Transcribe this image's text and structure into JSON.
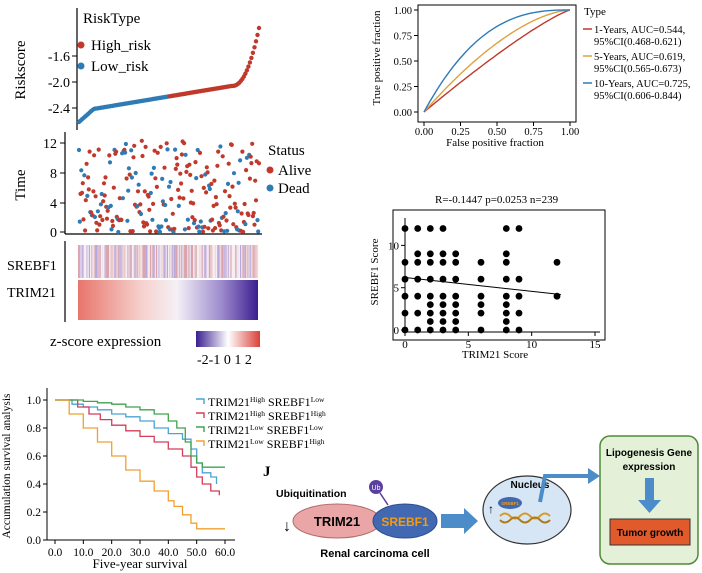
{
  "colors": {
    "high": "#C0392B",
    "low": "#2E7BB5",
    "heat_low": "#3B1E8F",
    "heat_high": "#D9413A",
    "roc1": "#C0392B",
    "roc5": "#E0A040",
    "roc10": "#2E7BB5",
    "km1": "#4AA3D4",
    "km2": "#D43C5C",
    "km3": "#3FA34D",
    "km4": "#F0A030"
  },
  "riskscore": {
    "legend_title": "RiskType",
    "legend_items": [
      "High_risk",
      "Low_risk"
    ],
    "ylabel": "Riskscore",
    "yticks": [
      "-1.6",
      "-2.0",
      "-2.4"
    ]
  },
  "time_panel": {
    "ylabel": "Time",
    "yticks": [
      "12",
      "8",
      "4",
      "0"
    ],
    "legend_title": "Status",
    "legend_items": [
      "Alive",
      "Dead"
    ]
  },
  "heatmap": {
    "genes": [
      "SREBF1",
      "TRIM21"
    ],
    "scale_label": "z-score expression",
    "scale_ticks": "-2-1 0 1 2"
  },
  "chart_data": [
    {
      "type": "line",
      "title": "",
      "xlabel": "False positive fraction",
      "ylabel": "True positive fraction",
      "xlim": [
        0,
        1
      ],
      "ylim": [
        0,
        1
      ],
      "xticks": [
        "0.00",
        "0.25",
        "0.50",
        "0.75",
        "1.00"
      ],
      "yticks": [
        "1.00",
        "0.75",
        "0.50",
        "0.25",
        "0.00"
      ],
      "legend_title": "Type",
      "series": [
        {
          "name": "1-Years, AUC=0.544,",
          "ci": "95%CI(0.468-0.621)",
          "auc": 0.544
        },
        {
          "name": "5-Years, AUC=0.619,",
          "ci": "95%CI(0.565-0.673)",
          "auc": 0.619
        },
        {
          "name": "10-Years, AUC=0.725,",
          "ci": "95%CI(0.606-0.844)",
          "auc": 0.725
        }
      ]
    },
    {
      "type": "scatter",
      "title": "R=-0.1447 p=0.0253 n=239",
      "xlabel": "TRIM21 Score",
      "ylabel": "SREBF1 Score",
      "xlim": [
        0,
        15
      ],
      "ylim": [
        0,
        13
      ],
      "xticks": [
        "0",
        "5",
        "10",
        "15"
      ],
      "yticks": [
        "10",
        "5",
        "0"
      ],
      "points": [
        [
          0,
          0
        ],
        [
          0,
          2
        ],
        [
          0,
          4
        ],
        [
          0,
          6
        ],
        [
          0,
          8
        ],
        [
          0,
          12
        ],
        [
          1,
          0
        ],
        [
          1,
          2
        ],
        [
          1,
          4
        ],
        [
          1,
          6
        ],
        [
          1,
          8
        ],
        [
          1,
          9
        ],
        [
          1,
          12
        ],
        [
          2,
          0
        ],
        [
          2,
          1
        ],
        [
          2,
          2
        ],
        [
          2,
          3
        ],
        [
          2,
          4
        ],
        [
          2,
          6
        ],
        [
          2,
          8
        ],
        [
          2,
          9
        ],
        [
          2,
          12
        ],
        [
          3,
          0
        ],
        [
          3,
          1
        ],
        [
          3,
          2
        ],
        [
          3,
          3
        ],
        [
          3,
          4
        ],
        [
          3,
          6
        ],
        [
          3,
          8
        ],
        [
          3,
          9
        ],
        [
          3,
          12
        ],
        [
          4,
          0
        ],
        [
          4,
          1
        ],
        [
          4,
          2
        ],
        [
          4,
          3
        ],
        [
          4,
          4
        ],
        [
          4,
          6
        ],
        [
          4,
          8
        ],
        [
          4,
          9
        ],
        [
          6,
          0
        ],
        [
          6,
          2
        ],
        [
          6,
          3
        ],
        [
          6,
          4
        ],
        [
          6,
          6
        ],
        [
          6,
          8
        ],
        [
          8,
          0
        ],
        [
          8,
          1
        ],
        [
          8,
          2
        ],
        [
          8,
          3
        ],
        [
          8,
          4
        ],
        [
          8,
          6
        ],
        [
          8,
          8
        ],
        [
          8,
          9
        ],
        [
          8,
          12
        ],
        [
          9,
          0
        ],
        [
          9,
          2
        ],
        [
          9,
          4
        ],
        [
          9,
          6
        ],
        [
          9,
          12
        ],
        [
          12,
          4
        ],
        [
          12,
          8
        ]
      ],
      "regression": [
        [
          0,
          6.2
        ],
        [
          12.3,
          4.2
        ]
      ]
    },
    {
      "type": "line",
      "title": "",
      "xlabel": "Five-year survival",
      "ylabel": "Accumulation survival analysis",
      "xlim": [
        0,
        60
      ],
      "ylim": [
        0,
        1
      ],
      "xticks": [
        "0.0",
        "10.0",
        "20.0",
        "30.0",
        "40.0",
        "50.0",
        "60.0"
      ],
      "yticks": [
        "1.0",
        "0.8",
        "0.6",
        "0.4",
        "0.2",
        "0.0"
      ],
      "series": [
        {
          "name": "TRIM21",
          "sup1": "High",
          "mid": "SREBF1",
          "sup2": "Low",
          "x": [
            0,
            6,
            10,
            15,
            20,
            25,
            30,
            35,
            40,
            45,
            48,
            50,
            52,
            55,
            57
          ],
          "y": [
            1.0,
            0.97,
            0.95,
            0.93,
            0.9,
            0.88,
            0.85,
            0.8,
            0.76,
            0.72,
            0.65,
            0.55,
            0.48,
            0.45,
            0.4
          ]
        },
        {
          "name": "TRIM21",
          "sup1": "High",
          "mid": "SREBF1",
          "sup2": "High",
          "x": [
            0,
            8,
            12,
            16,
            20,
            25,
            30,
            35,
            40,
            45,
            48,
            50,
            52,
            55,
            58
          ],
          "y": [
            1.0,
            0.95,
            0.9,
            0.86,
            0.82,
            0.78,
            0.74,
            0.7,
            0.65,
            0.6,
            0.52,
            0.45,
            0.4,
            0.35,
            0.32
          ]
        },
        {
          "name": "TRIM21",
          "sup1": "Low",
          "mid": "SREBF1",
          "sup2": "Low",
          "x": [
            0,
            10,
            15,
            20,
            25,
            30,
            35,
            40,
            43,
            46,
            48,
            50,
            52,
            55,
            60
          ],
          "y": [
            1.0,
            0.99,
            0.98,
            0.97,
            0.95,
            0.93,
            0.9,
            0.85,
            0.8,
            0.7,
            0.6,
            0.55,
            0.52,
            0.52,
            0.52
          ]
        },
        {
          "name": "TRIM21",
          "sup1": "Low",
          "mid": "SREBF1",
          "sup2": "High",
          "x": [
            0,
            5,
            10,
            15,
            20,
            25,
            30,
            35,
            40,
            42,
            45,
            48,
            50,
            55,
            60
          ],
          "y": [
            1.0,
            0.9,
            0.8,
            0.7,
            0.6,
            0.5,
            0.42,
            0.35,
            0.28,
            0.24,
            0.18,
            0.12,
            0.08,
            0.08,
            0.08
          ]
        }
      ]
    }
  ],
  "diagram": {
    "panel_label": "J",
    "ub_label": "Ub",
    "ubiquitination": "Ubiquitination",
    "trim21": "TRIM21",
    "srebf1": "SREBF1",
    "cell_label": "Renal carcinoma cell",
    "nucleus_label": "Nucleus",
    "srebf1_small": "SREBF1",
    "lipogenesis": "Lipogenesis Gene expression",
    "tumor_growth": "Tumor growth",
    "arrow_down": "↓",
    "arrow_up": "↑"
  }
}
